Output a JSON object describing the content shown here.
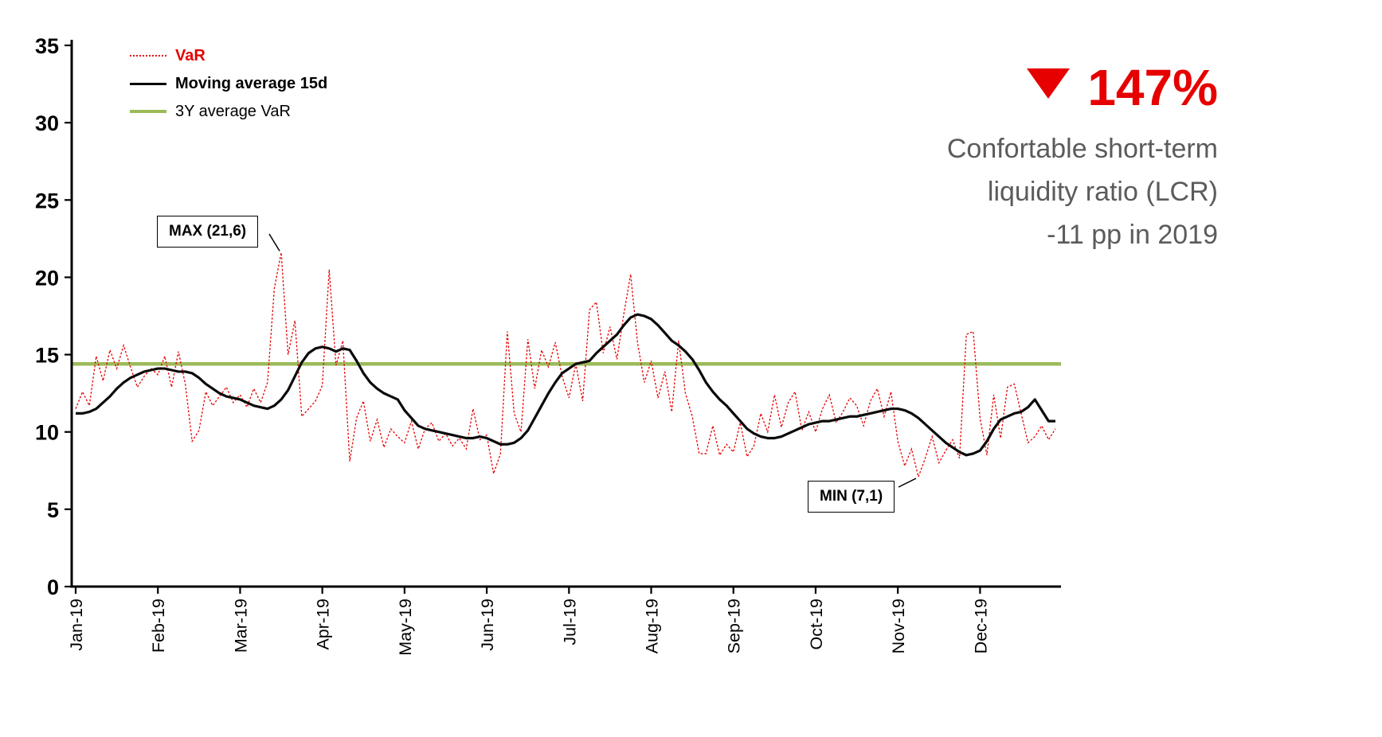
{
  "legend": {
    "var_label": "VaR",
    "ma_label": "Moving average 15d",
    "avg_label": "3Y average VaR"
  },
  "annotations": {
    "max_label": "MAX (21,6)",
    "min_label": "MIN (7,1)"
  },
  "kpi": {
    "value": "147%",
    "line1": "Confortable short-term",
    "line2": "liquidity ratio (LCR)",
    "line3": "-11 pp in 2019"
  },
  "colors": {
    "red": "#e60000",
    "black": "#000000",
    "green": "#9bbb59",
    "gray_text": "#5b5b5b"
  },
  "chart_data": {
    "type": "line",
    "title": "",
    "xlabel": "",
    "ylabel": "",
    "ylim": [
      0,
      35
    ],
    "yticks": [
      0,
      5,
      10,
      15,
      20,
      25,
      30,
      35
    ],
    "x_tick_labels": [
      "Jan-19",
      "Feb-19",
      "Mar-19",
      "Apr-19",
      "May-19",
      "Jun-19",
      "Jul-19",
      "Aug-19",
      "Sep-19",
      "Oct-19",
      "Nov-19",
      "Dec-19"
    ],
    "points_per_month": 12,
    "three_year_avg_var": 14.4,
    "max_point": {
      "index": 30,
      "value": 21.6,
      "label": "MAX (21,6)"
    },
    "min_point": {
      "index": 123,
      "value": 7.1,
      "label": "MIN (7,1)"
    },
    "legend_position": "top-left",
    "grid": false,
    "series": [
      {
        "name": "VaR",
        "style": "dotted-red",
        "values": [
          11.5,
          12.6,
          11.7,
          14.9,
          13.3,
          15.3,
          14.1,
          15.6,
          14.2,
          12.9,
          13.6,
          14.1,
          13.7,
          14.9,
          12.9,
          15.2,
          13.1,
          9.4,
          10.1,
          12.6,
          11.7,
          12.3,
          12.9,
          11.9,
          12.4,
          11.6,
          12.8,
          11.9,
          13.2,
          19.3,
          21.6,
          15.0,
          17.2,
          11.0,
          11.5,
          12.0,
          13.0,
          20.5,
          14.3,
          15.9,
          8.1,
          10.9,
          12.0,
          9.4,
          10.8,
          9.0,
          10.2,
          9.7,
          9.3,
          10.7,
          8.9,
          10.2,
          10.6,
          9.4,
          9.9,
          9.1,
          9.6,
          8.9,
          11.5,
          9.5,
          9.8,
          7.3,
          8.6,
          16.5,
          11.2,
          10.0,
          16.0,
          12.8,
          15.3,
          14.2,
          15.8,
          13.6,
          12.2,
          14.4,
          12.0,
          17.9,
          18.4,
          15.1,
          16.8,
          14.7,
          17.6,
          20.2,
          15.8,
          13.2,
          14.6,
          12.2,
          13.9,
          11.3,
          15.9,
          12.5,
          11.0,
          8.6,
          8.6,
          10.4,
          8.5,
          9.2,
          8.7,
          10.6,
          8.4,
          9.1,
          11.2,
          10.0,
          12.4,
          10.3,
          11.9,
          12.6,
          10.1,
          11.3,
          10.0,
          11.5,
          12.4,
          10.6,
          11.3,
          12.2,
          11.7,
          10.4,
          12.0,
          12.8,
          11.0,
          12.6,
          9.4,
          7.8,
          8.9,
          7.1,
          8.3,
          9.7,
          8.0,
          8.8,
          9.5,
          8.3,
          16.3,
          16.5,
          10.9,
          8.5,
          12.4,
          9.6,
          12.9,
          13.1,
          11.2,
          9.3,
          9.7,
          10.4,
          9.5,
          10.2
        ]
      },
      {
        "name": "Moving average 15d",
        "style": "solid-black",
        "values": [
          11.2,
          11.2,
          11.3,
          11.5,
          11.9,
          12.3,
          12.8,
          13.2,
          13.5,
          13.7,
          13.9,
          14.0,
          14.1,
          14.1,
          14.0,
          13.9,
          13.9,
          13.8,
          13.5,
          13.1,
          12.8,
          12.5,
          12.3,
          12.2,
          12.1,
          11.9,
          11.7,
          11.6,
          11.5,
          11.7,
          12.1,
          12.7,
          13.6,
          14.5,
          15.1,
          15.4,
          15.5,
          15.4,
          15.2,
          15.4,
          15.3,
          14.6,
          13.8,
          13.2,
          12.8,
          12.5,
          12.3,
          12.1,
          11.4,
          10.9,
          10.4,
          10.2,
          10.1,
          10.0,
          9.9,
          9.8,
          9.7,
          9.6,
          9.6,
          9.7,
          9.6,
          9.4,
          9.2,
          9.2,
          9.3,
          9.6,
          10.1,
          10.9,
          11.7,
          12.5,
          13.2,
          13.8,
          14.1,
          14.4,
          14.5,
          14.6,
          15.1,
          15.5,
          15.9,
          16.3,
          16.9,
          17.4,
          17.6,
          17.5,
          17.3,
          16.9,
          16.4,
          15.9,
          15.6,
          15.2,
          14.7,
          14.0,
          13.2,
          12.6,
          12.1,
          11.7,
          11.2,
          10.7,
          10.2,
          9.9,
          9.7,
          9.6,
          9.6,
          9.7,
          9.9,
          10.1,
          10.3,
          10.5,
          10.6,
          10.7,
          10.7,
          10.8,
          10.9,
          11.0,
          11.0,
          11.1,
          11.2,
          11.3,
          11.4,
          11.5,
          11.5,
          11.4,
          11.2,
          10.9,
          10.5,
          10.1,
          9.7,
          9.3,
          9.0,
          8.7,
          8.5,
          8.6,
          8.8,
          9.4,
          10.2,
          10.8,
          11.0,
          11.2,
          11.3,
          11.6,
          12.1,
          11.4,
          10.7,
          10.7
        ]
      },
      {
        "name": "3Y average VaR",
        "style": "hline-green",
        "value": 14.4
      }
    ]
  }
}
